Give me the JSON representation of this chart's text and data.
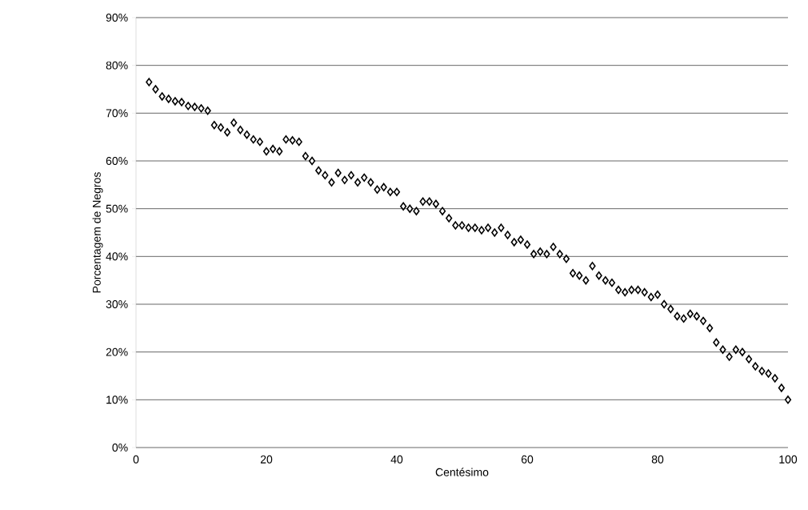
{
  "chart_data": {
    "type": "scatter",
    "xlabel": "Centésimo",
    "ylabel": "Porcentagem de Negros",
    "x": [
      2,
      3,
      4,
      5,
      6,
      7,
      8,
      9,
      10,
      11,
      12,
      13,
      14,
      15,
      16,
      17,
      18,
      19,
      20,
      21,
      22,
      23,
      24,
      25,
      26,
      27,
      28,
      29,
      30,
      31,
      32,
      33,
      34,
      35,
      36,
      37,
      38,
      39,
      40,
      41,
      42,
      43,
      44,
      45,
      46,
      47,
      48,
      49,
      50,
      51,
      52,
      53,
      54,
      55,
      56,
      57,
      58,
      59,
      60,
      61,
      62,
      63,
      64,
      65,
      66,
      67,
      68,
      69,
      70,
      71,
      72,
      73,
      74,
      75,
      76,
      77,
      78,
      79,
      80,
      81,
      82,
      83,
      84,
      85,
      86,
      87,
      88,
      89,
      90,
      91,
      92,
      93,
      94,
      95,
      96,
      97,
      98,
      99,
      100
    ],
    "values": [
      76.5,
      75,
      73.5,
      73,
      72.5,
      72.3,
      71.5,
      71.3,
      71,
      70.5,
      67.5,
      67,
      66,
      68,
      66.5,
      65.5,
      64.5,
      64,
      62,
      62.5,
      62,
      64.5,
      64.3,
      64,
      61,
      60,
      58,
      57,
      55.5,
      57.5,
      56,
      57,
      55.5,
      56.5,
      55.5,
      54,
      54.5,
      53.5,
      53.5,
      50.5,
      50,
      49.5,
      51.5,
      51.5,
      51,
      49.5,
      48,
      46.5,
      46.5,
      46,
      46,
      45.5,
      46,
      45,
      46,
      44.5,
      43,
      43.5,
      42.5,
      40.5,
      41,
      40.5,
      42,
      40.5,
      39.5,
      36.5,
      36,
      35,
      38,
      36,
      35,
      34.5,
      33,
      32.5,
      33,
      33,
      32.5,
      31.5,
      32,
      30,
      29,
      27.5,
      27,
      28,
      27.5,
      26.5,
      25,
      22,
      20.5,
      19,
      20.5,
      20,
      18.5,
      17,
      16,
      15.5,
      14.5,
      12.5,
      10
    ],
    "color": "#000000",
    "marker": "diamond",
    "grid": "y",
    "xlim": [
      0,
      100
    ],
    "xticks": [
      0,
      20,
      40,
      60,
      80,
      100
    ],
    "ylim": [
      0,
      90
    ],
    "yticks": [
      {
        "value": 0,
        "label": "0%"
      },
      {
        "value": 10,
        "label": "10%"
      },
      {
        "value": 20,
        "label": "20%"
      },
      {
        "value": 30,
        "label": "30%"
      },
      {
        "value": 40,
        "label": "40%"
      },
      {
        "value": 50,
        "label": "50%"
      },
      {
        "value": 60,
        "label": "60%"
      },
      {
        "value": 70,
        "label": "70%"
      },
      {
        "value": 80,
        "label": "80%"
      },
      {
        "value": 90,
        "label": "90%"
      }
    ]
  }
}
